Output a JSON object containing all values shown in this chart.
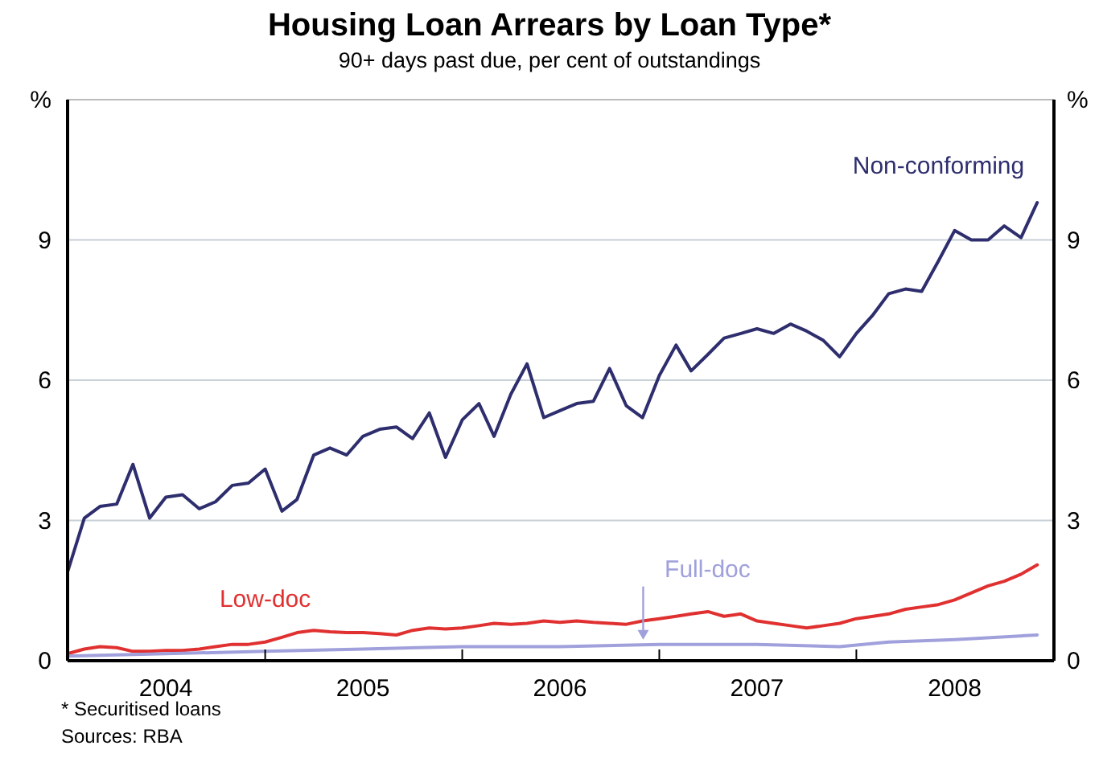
{
  "chart_data": {
    "type": "line",
    "title": "Housing Loan Arrears by Loan Type*",
    "subtitle": "90+ days past due, per cent of outstandings",
    "x": [
      "2004-01",
      "2004-02",
      "2004-03",
      "2004-04",
      "2004-05",
      "2004-06",
      "2004-07",
      "2004-08",
      "2004-09",
      "2004-10",
      "2004-11",
      "2004-12",
      "2005-01",
      "2005-02",
      "2005-03",
      "2005-04",
      "2005-05",
      "2005-06",
      "2005-07",
      "2005-08",
      "2005-09",
      "2005-10",
      "2005-11",
      "2005-12",
      "2006-01",
      "2006-02",
      "2006-03",
      "2006-04",
      "2006-05",
      "2006-06",
      "2006-07",
      "2006-08",
      "2006-09",
      "2006-10",
      "2006-11",
      "2006-12",
      "2007-01",
      "2007-02",
      "2007-03",
      "2007-04",
      "2007-05",
      "2007-06",
      "2007-07",
      "2007-08",
      "2007-09",
      "2007-10",
      "2007-11",
      "2007-12",
      "2008-01",
      "2008-02",
      "2008-03",
      "2008-04",
      "2008-05",
      "2008-06",
      "2008-07",
      "2008-08",
      "2008-09",
      "2008-10",
      "2008-11",
      "2008-12"
    ],
    "series": [
      {
        "name": "Non-conforming",
        "color": "#2e2e6e",
        "values": [
          1.9,
          3.05,
          3.3,
          3.35,
          4.2,
          3.05,
          3.5,
          3.55,
          3.25,
          3.4,
          3.75,
          3.8,
          4.1,
          3.2,
          3.45,
          4.4,
          4.55,
          4.4,
          4.8,
          4.95,
          5.0,
          4.75,
          5.3,
          4.35,
          5.15,
          5.5,
          4.8,
          5.7,
          6.35,
          5.2,
          5.35,
          5.5,
          5.55,
          6.25,
          5.45,
          5.2,
          6.1,
          6.75,
          6.2,
          6.55,
          6.9,
          7.0,
          7.1,
          7.0,
          7.2,
          7.05,
          6.85,
          6.5,
          7.0,
          7.4,
          7.85,
          7.95,
          7.9,
          8.55,
          9.2,
          9.0,
          9.0,
          9.3,
          9.05,
          9.8
        ]
      },
      {
        "name": "Low-doc",
        "color": "#e03030",
        "values": [
          0.15,
          0.25,
          0.3,
          0.28,
          0.2,
          0.2,
          0.22,
          0.22,
          0.25,
          0.3,
          0.35,
          0.35,
          0.4,
          0.5,
          0.6,
          0.65,
          0.62,
          0.6,
          0.6,
          0.58,
          0.55,
          0.65,
          0.7,
          0.68,
          0.7,
          0.75,
          0.8,
          0.78,
          0.8,
          0.85,
          0.82,
          0.85,
          0.82,
          0.8,
          0.78,
          0.85,
          0.9,
          0.95,
          1.0,
          1.05,
          0.95,
          1.0,
          0.85,
          0.8,
          0.75,
          0.7,
          0.75,
          0.8,
          0.9,
          0.95,
          1.0,
          1.1,
          1.15,
          1.2,
          1.3,
          1.45,
          1.6,
          1.7,
          1.85,
          2.05
        ]
      },
      {
        "name": "Full-doc",
        "color": "#a0a0dc",
        "x": [
          "2004-01",
          "2004-07",
          "2005-01",
          "2005-07",
          "2006-01",
          "2006-07",
          "2007-01",
          "2007-07",
          "2007-12",
          "2008-03",
          "2008-07",
          "2008-12"
        ],
        "values": [
          0.1,
          0.15,
          0.2,
          0.25,
          0.3,
          0.3,
          0.35,
          0.35,
          0.3,
          0.4,
          0.45,
          0.55
        ]
      }
    ],
    "xlim": [
      "2004-01",
      "2009-01"
    ],
    "xticks": [
      {
        "value": "2004-07",
        "label": "2004"
      },
      {
        "value": "2005-01",
        "label": null
      },
      {
        "value": "2005-07",
        "label": "2005"
      },
      {
        "value": "2006-01",
        "label": null
      },
      {
        "value": "2006-07",
        "label": "2006"
      },
      {
        "value": "2007-01",
        "label": null
      },
      {
        "value": "2007-07",
        "label": "2007"
      },
      {
        "value": "2008-01",
        "label": null
      },
      {
        "value": "2008-07",
        "label": "2008"
      }
    ],
    "ylim": [
      0,
      12
    ],
    "yticks": [
      0,
      3,
      6,
      9,
      {
        "value": 12,
        "label": "%"
      }
    ],
    "y2lim": [
      0,
      12
    ],
    "y2ticks": [
      0,
      3,
      6,
      9,
      {
        "value": 12,
        "label": "%"
      }
    ],
    "grid": "y",
    "annotations": [
      "*  Securitised loans",
      "Sources: RBA"
    ]
  }
}
